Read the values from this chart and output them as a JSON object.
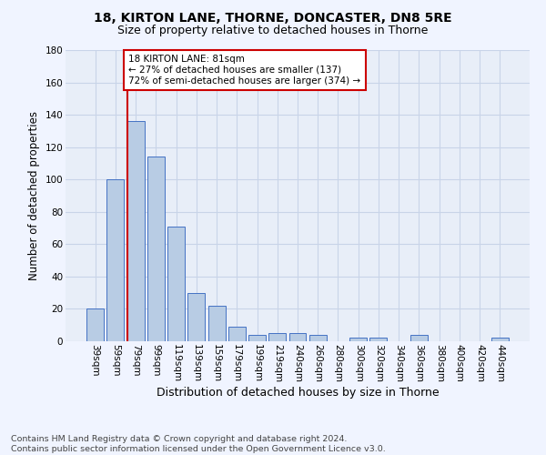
{
  "title1": "18, KIRTON LANE, THORNE, DONCASTER, DN8 5RE",
  "title2": "Size of property relative to detached houses in Thorne",
  "xlabel": "Distribution of detached houses by size in Thorne",
  "ylabel": "Number of detached properties",
  "footnote": "Contains HM Land Registry data © Crown copyright and database right 2024.\nContains public sector information licensed under the Open Government Licence v3.0.",
  "bar_labels": [
    "39sqm",
    "59sqm",
    "79sqm",
    "99sqm",
    "119sqm",
    "139sqm",
    "159sqm",
    "179sqm",
    "199sqm",
    "219sqm",
    "240sqm",
    "260sqm",
    "280sqm",
    "300sqm",
    "320sqm",
    "340sqm",
    "360sqm",
    "380sqm",
    "400sqm",
    "420sqm",
    "440sqm"
  ],
  "bar_values": [
    20,
    100,
    136,
    114,
    71,
    30,
    22,
    9,
    4,
    5,
    5,
    4,
    0,
    2,
    2,
    0,
    4,
    0,
    0,
    0,
    2
  ],
  "bar_color": "#b8cce4",
  "bar_edge_color": "#4472c4",
  "property_line_label": "18 KIRTON LANE: 81sqm",
  "annotation_line1": "← 27% of detached houses are smaller (137)",
  "annotation_line2": "72% of semi-detached houses are larger (374) →",
  "annotation_box_color": "#ffffff",
  "annotation_box_edge_color": "#cc0000",
  "vline_color": "#cc0000",
  "ylim": [
    0,
    180
  ],
  "yticks": [
    0,
    20,
    40,
    60,
    80,
    100,
    120,
    140,
    160,
    180
  ],
  "background_color": "#f0f4ff",
  "plot_bg_color": "#e8eef8",
  "grid_color": "#c8d4e8",
  "title1_fontsize": 10,
  "title2_fontsize": 9,
  "axis_label_fontsize": 8.5,
  "tick_fontsize": 7.5,
  "footnote_fontsize": 6.8
}
